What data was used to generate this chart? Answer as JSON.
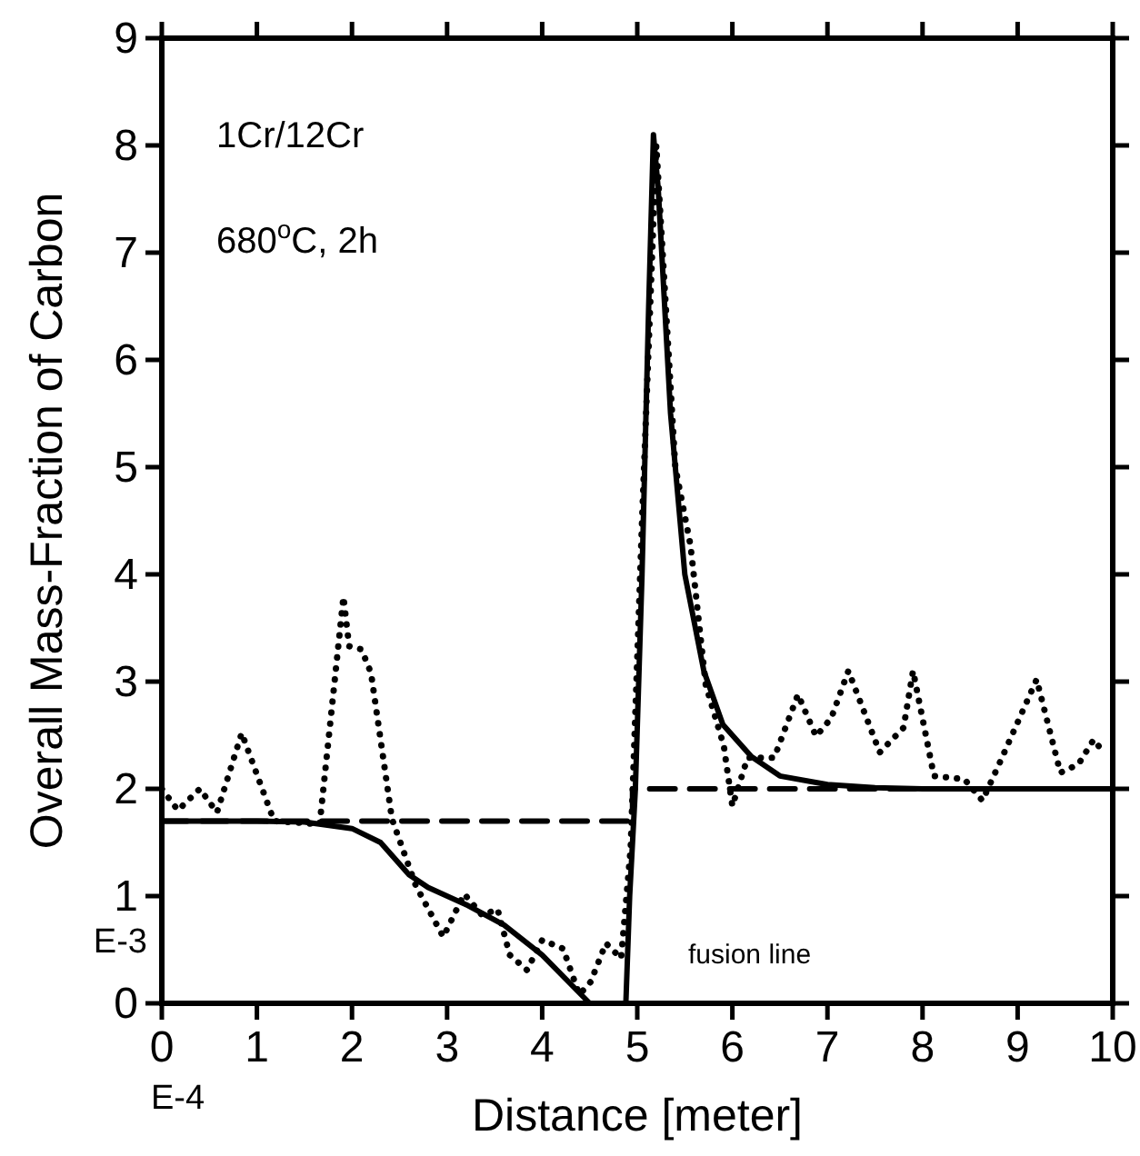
{
  "chart_data": {
    "type": "line",
    "xlabel": "Distance  [meter]",
    "ylabel": "Overall Mass-Fraction of Carbon",
    "xlim": [
      0,
      10
    ],
    "ylim": [
      0,
      9
    ],
    "xticks": [
      0,
      1,
      2,
      3,
      4,
      5,
      6,
      7,
      8,
      9,
      10
    ],
    "yticks": [
      0,
      1,
      2,
      3,
      4,
      5,
      6,
      7,
      8,
      9
    ],
    "annotations": [
      "1Cr/12Cr",
      "680$^{o}$C,  2h",
      {
        "text": "fusion line",
        "x": 5,
        "y": 0
      },
      "E-3",
      "E-4"
    ],
    "series": [
      {
        "color": "#000000",
        "line_style": "solid",
        "x": [
          0,
          1,
          1.5,
          2,
          2.3,
          2.6,
          2.8,
          3.2,
          3.6,
          4,
          4.3,
          4.5,
          4.88,
          4.92,
          4.98,
          5.05,
          5.12,
          5.17,
          5.22,
          5.35,
          5.5,
          5.7,
          5.9,
          6.2,
          6.5,
          7,
          7.5,
          8,
          10
        ],
        "values": [
          1.7,
          1.7,
          1.69,
          1.63,
          1.5,
          1.2,
          1.08,
          0.92,
          0.73,
          0.45,
          0.18,
          0,
          0,
          1.0,
          2.0,
          4.0,
          6.5,
          8.1,
          7.6,
          5.5,
          4.0,
          3.1,
          2.6,
          2.3,
          2.12,
          2.04,
          2.01,
          2.0,
          2.0
        ]
      },
      {
        "color": "#000000",
        "line_style": "dotted",
        "x": [
          0,
          0.17,
          0.4,
          0.58,
          0.84,
          1.18,
          1.66,
          1.91,
          1.97,
          2.1,
          2.2,
          2.42,
          2.67,
          2.96,
          3.18,
          3.37,
          3.53,
          3.66,
          3.84,
          4.0,
          4.22,
          4.39,
          4.51,
          4.67,
          4.83,
          4.93,
          5.05,
          5.2,
          5.3,
          5.4,
          5.56,
          5.72,
          5.91,
          6.0,
          6.16,
          6.44,
          6.69,
          6.88,
          7.04,
          7.22,
          7.55,
          7.8,
          7.9,
          8.12,
          8.44,
          8.63,
          8.82,
          9.2,
          9.45,
          9.64,
          9.8,
          9.92
        ],
        "values": [
          2.0,
          1.8,
          2.0,
          1.78,
          2.52,
          1.7,
          1.67,
          3.79,
          3.33,
          3.3,
          3.08,
          1.72,
          1.1,
          0.62,
          1.02,
          0.82,
          0.88,
          0.45,
          0.31,
          0.59,
          0.51,
          0.08,
          0.2,
          0.56,
          0.42,
          1.44,
          4.5,
          8.0,
          6.5,
          5.0,
          4.27,
          2.97,
          2.4,
          1.84,
          2.29,
          2.29,
          2.88,
          2.49,
          2.66,
          3.1,
          2.34,
          2.57,
          3.1,
          2.12,
          2.09,
          1.89,
          2.26,
          3.02,
          2.15,
          2.23,
          2.46,
          2.32
        ]
      },
      {
        "color": "#000000",
        "line_style": "dashed",
        "x": [
          0,
          4.95,
          4.95,
          10
        ],
        "values": [
          1.7,
          1.7,
          2.0,
          2.0
        ]
      }
    ]
  }
}
